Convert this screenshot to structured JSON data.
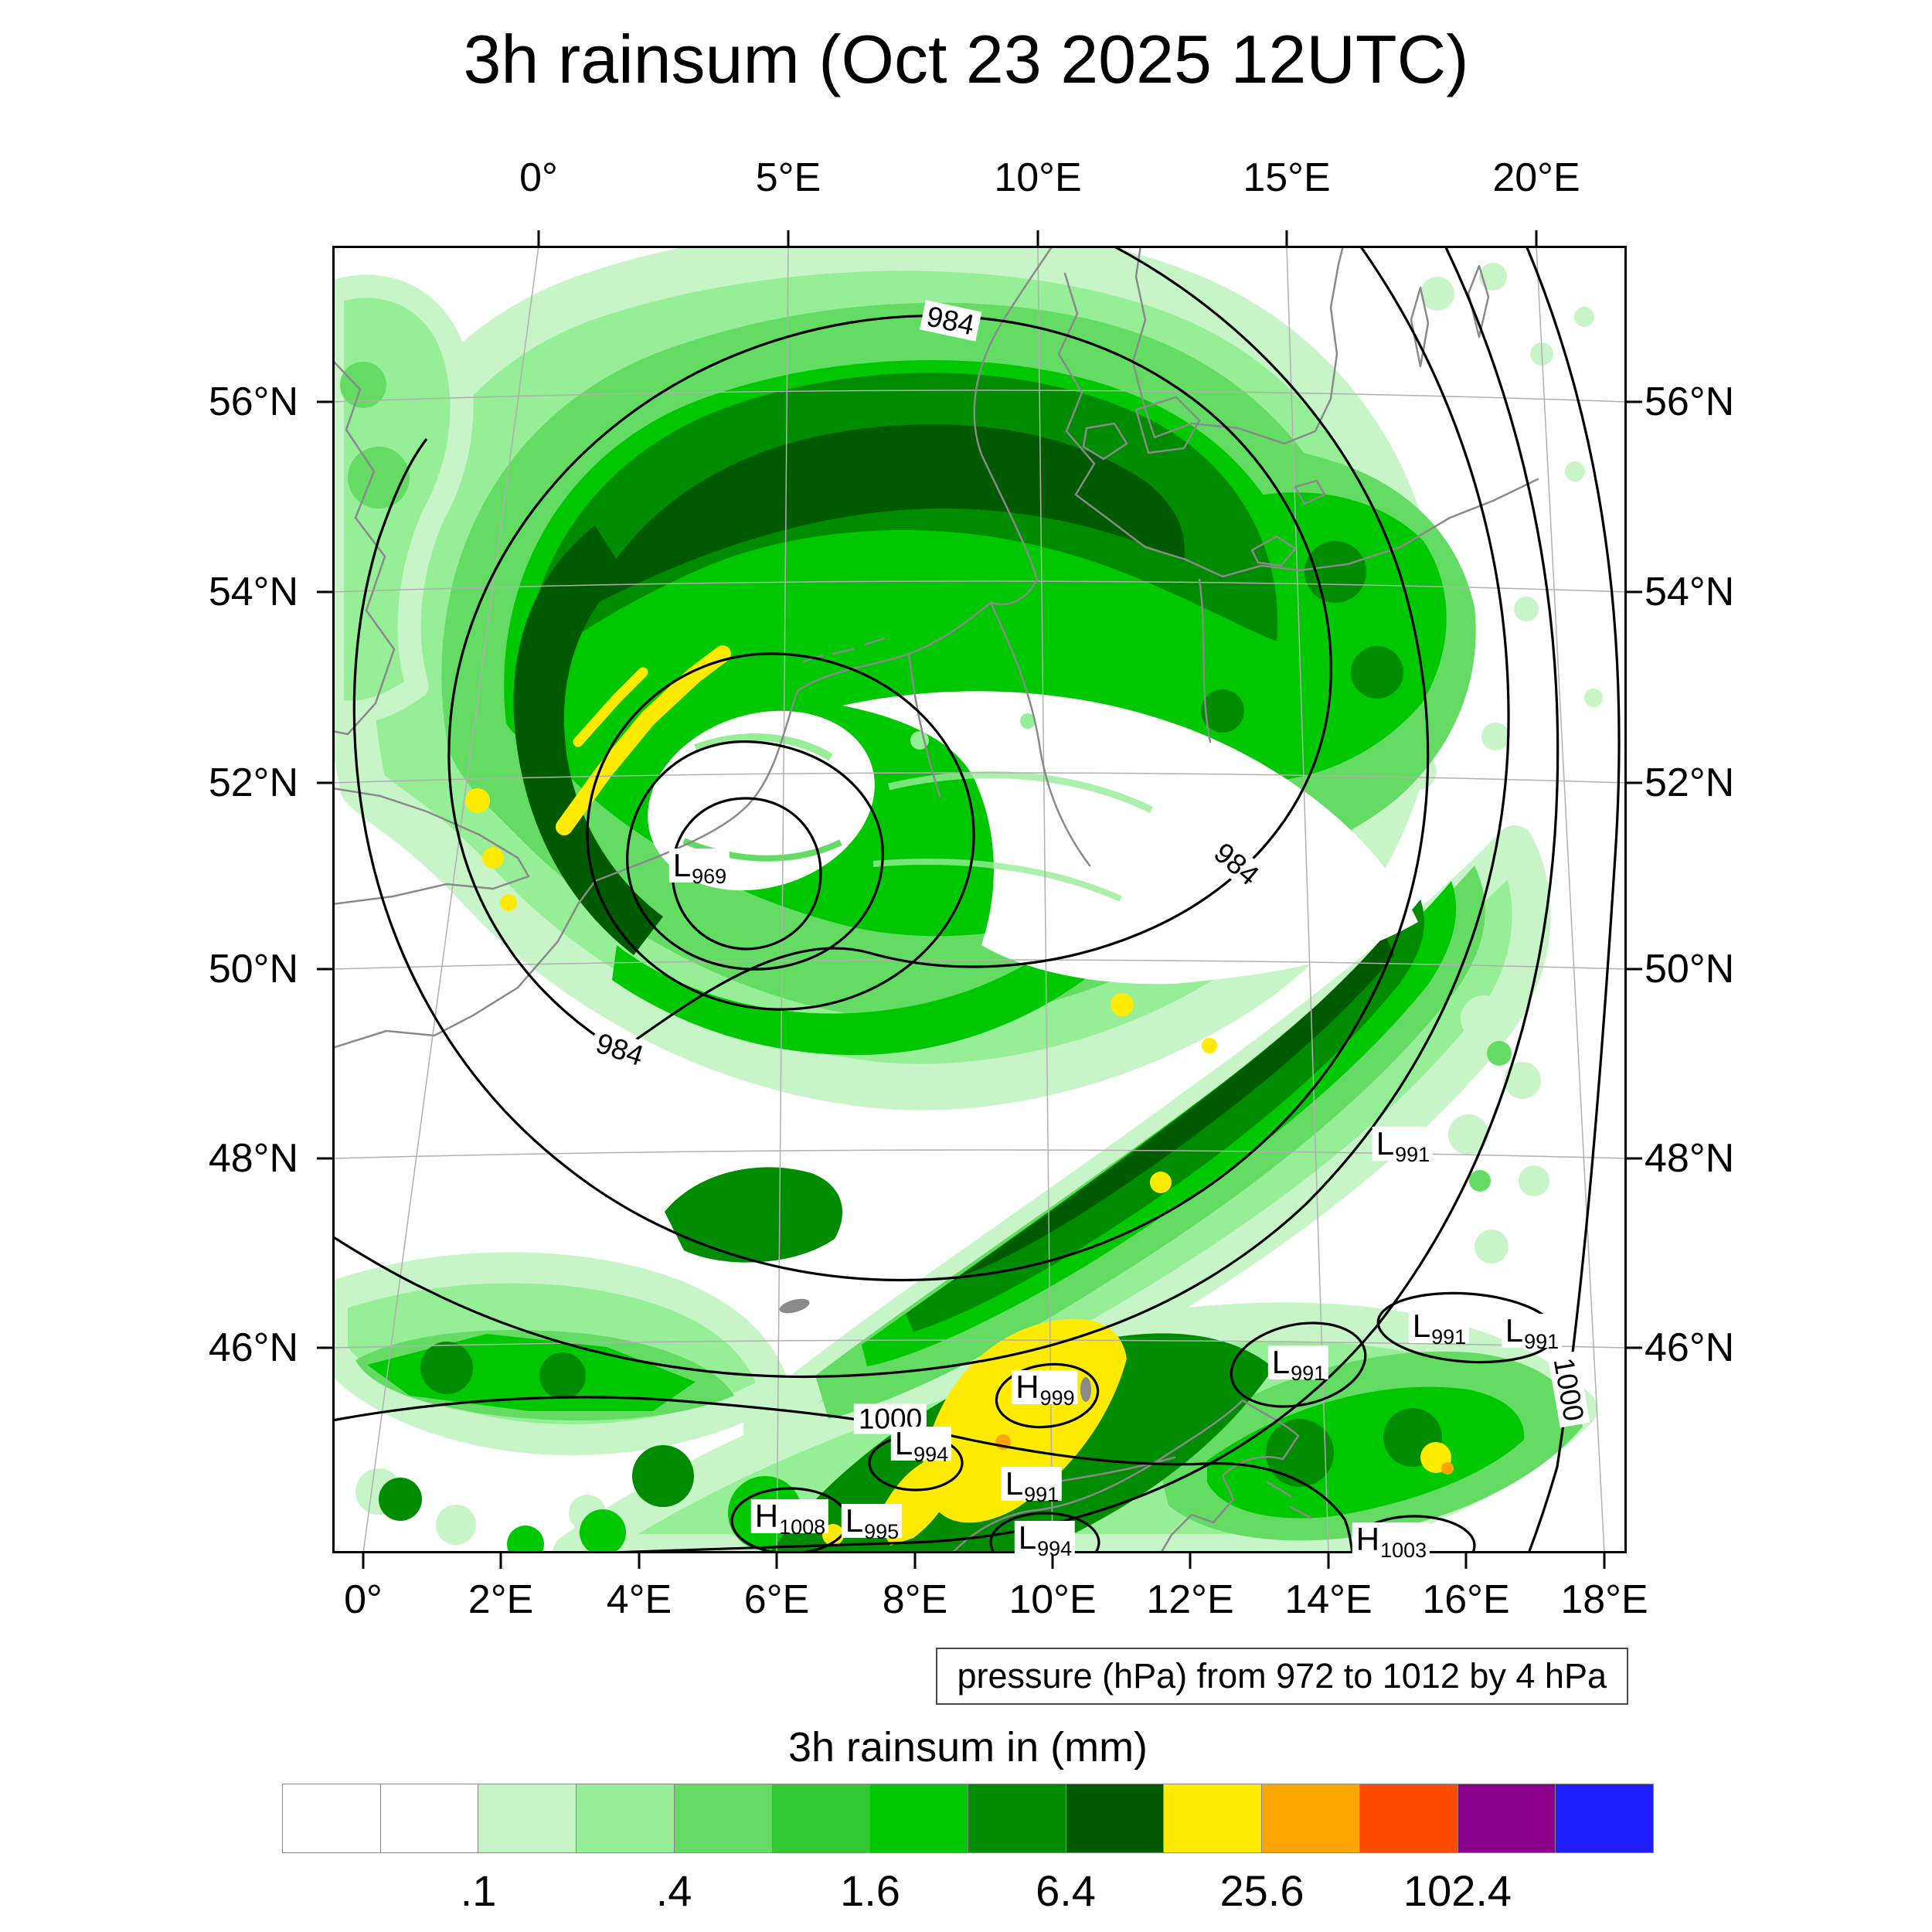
{
  "title": "3h rainsum (Oct 23 2025 12UTC)",
  "axes": {
    "top": [
      "0°",
      "5°E",
      "10°E",
      "15°E",
      "20°E"
    ],
    "bottom": [
      "0°",
      "2°E",
      "4°E",
      "6°E",
      "8°E",
      "10°E",
      "12°E",
      "14°E",
      "16°E",
      "18°E"
    ],
    "left": [
      "56°N",
      "54°N",
      "52°N",
      "50°N",
      "48°N",
      "46°N"
    ],
    "right": [
      "56°N",
      "54°N",
      "52°N",
      "50°N",
      "48°N",
      "46°N"
    ]
  },
  "pressure": {
    "caption": "pressure (hPa) from 972 to 1012 by 4 hPa",
    "contour_labels": [
      "984",
      "984",
      "984",
      "1000",
      "1000"
    ],
    "centers": [
      {
        "letter": "L",
        "value": "969"
      },
      {
        "letter": "L",
        "value": "991"
      },
      {
        "letter": "L",
        "value": "991"
      },
      {
        "letter": "L",
        "value": "991"
      },
      {
        "letter": "L",
        "value": "991"
      },
      {
        "letter": "H",
        "value": "999"
      },
      {
        "letter": "L",
        "value": "991"
      },
      {
        "letter": "L",
        "value": "994"
      },
      {
        "letter": "H",
        "value": "1008"
      },
      {
        "letter": "L",
        "value": "995"
      },
      {
        "letter": "L",
        "value": "994"
      },
      {
        "letter": "H",
        "value": "1003"
      }
    ]
  },
  "colorbar": {
    "title": "3h rainsum in (mm)",
    "tick_labels": [
      ".1",
      ".4",
      "1.6",
      "6.4",
      "25.6",
      "102.4"
    ],
    "colors": [
      "#FFFFFF",
      "#FFFFFF",
      "#C8F5C8",
      "#96EE96",
      "#64DC64",
      "#32C832",
      "#00C800",
      "#008C00",
      "#005A00",
      "#FFEB00",
      "#FFA500",
      "#FF4B00",
      "#8C008C",
      "#1E1EFF"
    ]
  },
  "chart_data": {
    "type": "heatmap",
    "title": "3h rainsum (Oct 23 2025 12UTC)",
    "field_label": "3h rainsum in (mm)",
    "colorbar_tick_values": [
      0.1,
      0.4,
      1.6,
      6.4,
      25.6,
      102.4
    ],
    "lon_range": [
      "0°",
      "20°E"
    ],
    "lat_range": [
      "46°N",
      "56°N"
    ],
    "pressure_overlay": {
      "unit": "hPa",
      "from": 972,
      "to": 1012,
      "by": 4,
      "labeled_contours": [
        984,
        1000
      ]
    },
    "pressure_centers": [
      {
        "type": "L",
        "hPa": 969
      },
      {
        "type": "L",
        "hPa": 991
      },
      {
        "type": "L",
        "hPa": 991
      },
      {
        "type": "L",
        "hPa": 991
      },
      {
        "type": "L",
        "hPa": 991
      },
      {
        "type": "H",
        "hPa": 999
      },
      {
        "type": "L",
        "hPa": 991
      },
      {
        "type": "L",
        "hPa": 994
      },
      {
        "type": "H",
        "hPa": 1008
      },
      {
        "type": "L",
        "hPa": 995
      },
      {
        "type": "L",
        "hPa": 994
      },
      {
        "type": "H",
        "hPa": 1003
      }
    ]
  }
}
